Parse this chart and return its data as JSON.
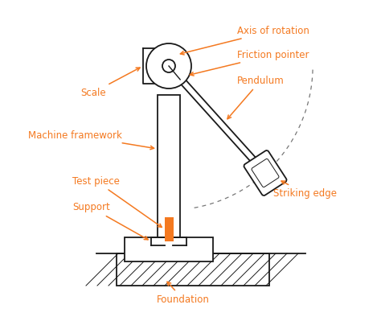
{
  "bg_color": "#ffffff",
  "line_color": "#1a1a1a",
  "orange_color": "#f47920",
  "labels": {
    "axis_of_rotation": "Axis of rotation",
    "friction_pointer": "Friction pointer",
    "pendulum": "Pendulum",
    "scale": "Scale",
    "machine_framework": "Machine framework",
    "test_piece": "Test piece",
    "support": "Support",
    "striking_edge": "Striking edge",
    "foundation": "Foundation"
  },
  "font_size": 8.5
}
